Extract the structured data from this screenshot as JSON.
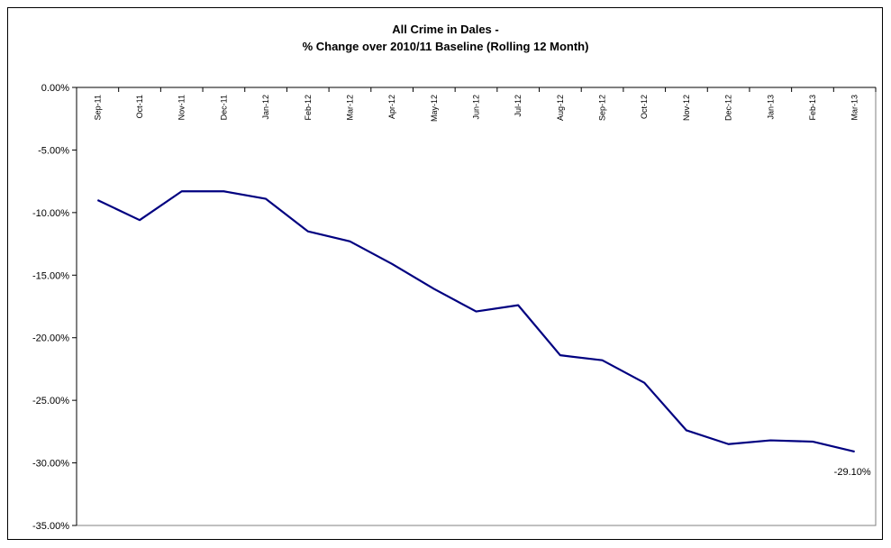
{
  "chart_data": {
    "type": "line",
    "title": "All Crime in Dales -",
    "subtitle": "% Change over 2010/11 Baseline (Rolling 12 Month)",
    "xlabel": "",
    "ylabel": "",
    "categories": [
      "Sep-11",
      "Oct-11",
      "Nov-11",
      "Dec-11",
      "Jan-12",
      "Feb-12",
      "Mar-12",
      "Apr-12",
      "May-12",
      "Jun-12",
      "Jul-12",
      "Aug-12",
      "Sep-12",
      "Oct-12",
      "Nov-12",
      "Dec-12",
      "Jan-13",
      "Feb-13",
      "Mar-13"
    ],
    "series": [
      {
        "values": [
          -9.0,
          -10.6,
          -8.3,
          -8.3,
          -8.9,
          -11.5,
          -12.3,
          -14.1,
          -16.1,
          -17.9,
          -17.4,
          -21.4,
          -21.8,
          -23.6,
          -27.4,
          -28.5,
          -28.2,
          -28.3,
          -29.1
        ],
        "color": "#000080"
      }
    ],
    "yticks": [
      "0.00%",
      "-5.00%",
      "-10.00%",
      "-15.00%",
      "-20.00%",
      "-25.00%",
      "-30.00%",
      "-35.00%"
    ],
    "ylim": [
      -35,
      0
    ],
    "data_label": "-29.10%",
    "grid": false,
    "x_axis_position": "top"
  }
}
